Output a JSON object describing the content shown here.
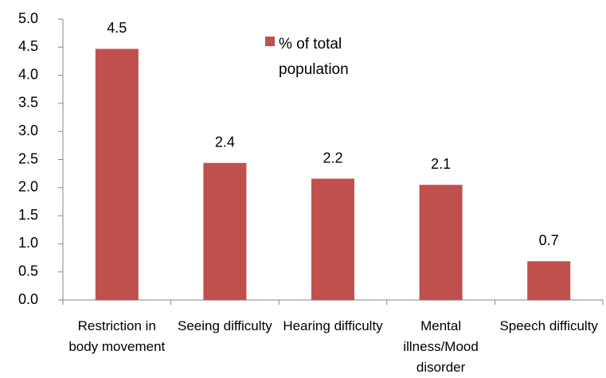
{
  "chart_data": {
    "type": "bar",
    "categories": [
      "Restriction in body movement",
      "Seeing difficulty",
      "Hearing difficulty",
      "Mental illness/Mood disorder",
      "Speech difficulty"
    ],
    "series": [
      {
        "name": "% of total population",
        "color": "#c0504d",
        "values": [
          4.47,
          2.44,
          2.16,
          2.05,
          0.69
        ],
        "value_labels": [
          "4.5",
          "2.4",
          "2.2",
          "2.1",
          "0.7"
        ]
      }
    ],
    "ylim": [
      0,
      5
    ],
    "yticks": [
      {
        "value": 0,
        "label": "0.0"
      },
      {
        "value": 0.5,
        "label": "0.5"
      },
      {
        "value": 1,
        "label": "1.0"
      },
      {
        "value": 1.5,
        "label": "1.5"
      },
      {
        "value": 2,
        "label": "2.0"
      },
      {
        "value": 2.5,
        "label": "2.5"
      },
      {
        "value": 3,
        "label": "3.0"
      },
      {
        "value": 3.5,
        "label": "3.5"
      },
      {
        "value": 4,
        "label": "4.0"
      },
      {
        "value": 4.5,
        "label": "4.5"
      },
      {
        "value": 5,
        "label": "5.0"
      }
    ],
    "grid": false,
    "legend": "top-right"
  }
}
